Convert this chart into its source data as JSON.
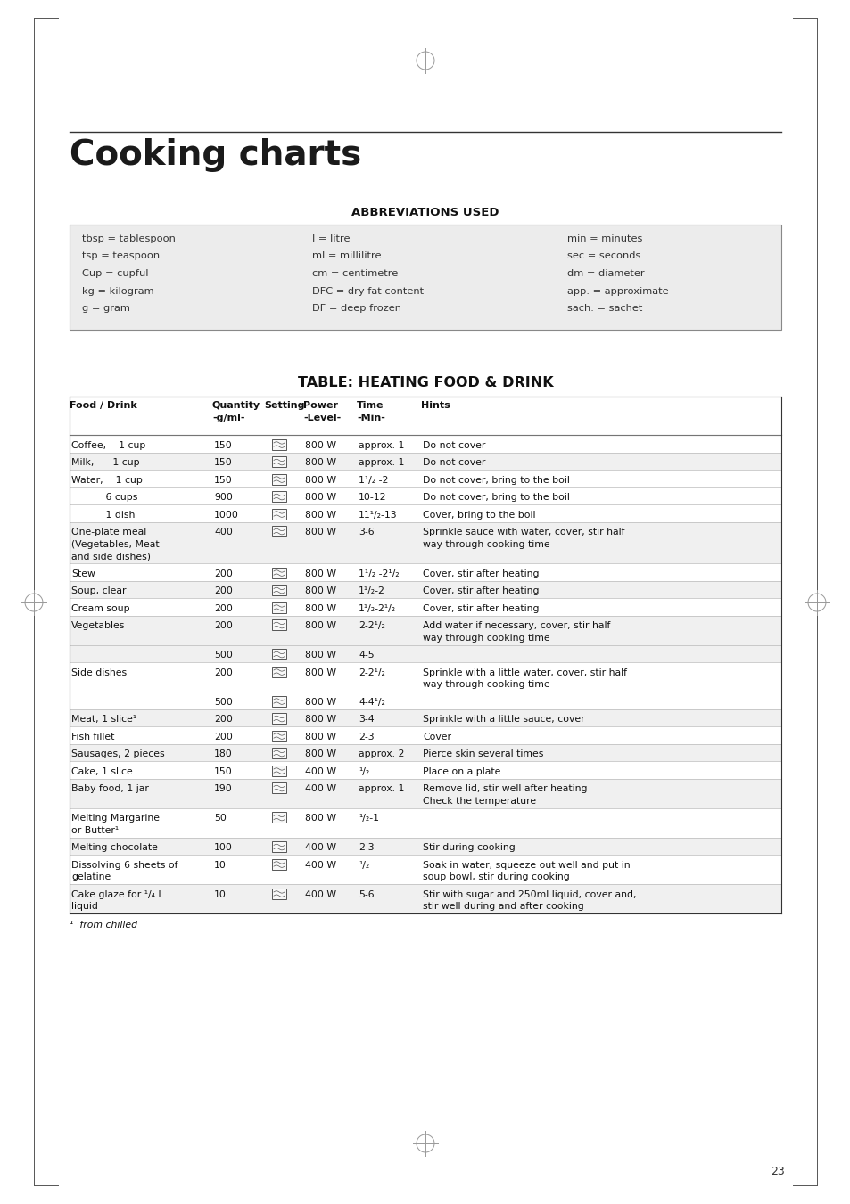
{
  "title": "Cooking charts",
  "page_number": "23",
  "abbrev_title": "ABBREVIATIONS USED",
  "abbrev_data": [
    [
      "tbsp = tablespoon",
      "l = litre",
      "min = minutes"
    ],
    [
      "tsp = teaspoon",
      "ml = millilitre",
      "sec = seconds"
    ],
    [
      "Cup = cupful",
      "cm = centimetre",
      "dm = diameter"
    ],
    [
      "kg = kilogram",
      "DFC = dry fat content",
      "app. = approximate"
    ],
    [
      "g = gram",
      "DF = deep frozen",
      "sach. = sachet"
    ]
  ],
  "table_title": "TABLE: HEATING FOOD & DRINK",
  "table_rows": [
    [
      "Coffee,    1 cup",
      "150",
      "800 W",
      "approx. 1",
      "Do not cover",
      "white"
    ],
    [
      "Milk,      1 cup",
      "150",
      "800 W",
      "approx. 1",
      "Do not cover",
      "gray"
    ],
    [
      "Water,    1 cup",
      "150",
      "800 W",
      "1¹/₂ -2",
      "Do not cover, bring to the boil",
      "white"
    ],
    [
      "           6 cups",
      "900",
      "800 W",
      "10-12",
      "Do not cover, bring to the boil",
      "white"
    ],
    [
      "           1 dish",
      "1000",
      "800 W",
      "11¹/₂-13",
      "Cover, bring to the boil",
      "white"
    ],
    [
      "One-plate meal\n(Vegetables, Meat\nand side dishes)",
      "400",
      "800 W",
      "3-6",
      "Sprinkle sauce with water, cover, stir half\nway through cooking time",
      "gray"
    ],
    [
      "Stew",
      "200",
      "800 W",
      "1¹/₂ -2¹/₂",
      "Cover, stir after heating",
      "white"
    ],
    [
      "Soup, clear",
      "200",
      "800 W",
      "1¹/₂-2",
      "Cover, stir after heating",
      "gray"
    ],
    [
      "Cream soup",
      "200",
      "800 W",
      "1¹/₂-2¹/₂",
      "Cover, stir after heating",
      "white"
    ],
    [
      "Vegetables",
      "200",
      "800 W",
      "2-2¹/₂",
      "Add water if necessary, cover, stir half\nway through cooking time",
      "gray"
    ],
    [
      "",
      "500",
      "800 W",
      "4-5",
      "",
      "gray"
    ],
    [
      "Side dishes",
      "200",
      "800 W",
      "2-2¹/₂",
      "Sprinkle with a little water, cover, stir half\nway through cooking time",
      "white"
    ],
    [
      "",
      "500",
      "800 W",
      "4-4¹/₂",
      "",
      "white"
    ],
    [
      "Meat, 1 slice¹",
      "200",
      "800 W",
      "3-4",
      "Sprinkle with a little sauce, cover",
      "gray"
    ],
    [
      "Fish fillet",
      "200",
      "800 W",
      "2-3",
      "Cover",
      "white"
    ],
    [
      "Sausages, 2 pieces",
      "180",
      "800 W",
      "approx. 2",
      "Pierce skin several times",
      "gray"
    ],
    [
      "Cake, 1 slice",
      "150",
      "400 W",
      "¹/₂",
      "Place on a plate",
      "white"
    ],
    [
      "Baby food, 1 jar",
      "190",
      "400 W",
      "approx. 1",
      "Remove lid, stir well after heating\nCheck the temperature",
      "gray"
    ],
    [
      "Melting Margarine\nor Butter¹",
      "50",
      "800 W",
      "¹/₂-1",
      "",
      "white"
    ],
    [
      "Melting chocolate",
      "100",
      "400 W",
      "2-3",
      "Stir during cooking",
      "gray"
    ],
    [
      "Dissolving 6 sheets of\ngelatine",
      "10",
      "400 W",
      "¹/₂",
      "Soak in water, squeeze out well and put in\nsoup bowl, stir during cooking",
      "white"
    ],
    [
      "Cake glaze for ¹/₄ l\nliquid",
      "10",
      "400 W",
      "5-6",
      "Stir with sugar and 250ml liquid, cover and,\nstir well during and after cooking",
      "gray"
    ]
  ],
  "footnote": "¹  from chilled",
  "bg_color": "#ffffff"
}
